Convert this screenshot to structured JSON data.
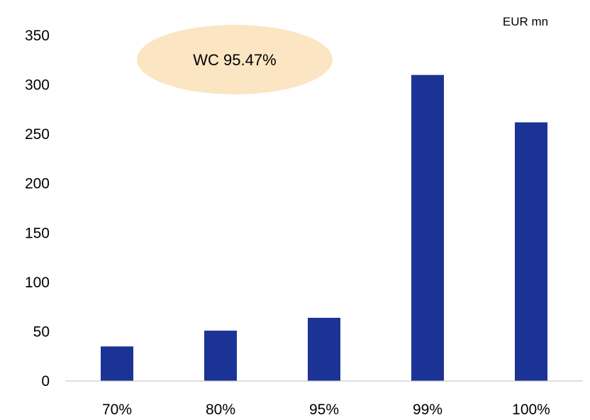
{
  "chart_data": {
    "type": "bar",
    "categories": [
      "70%",
      "80%",
      "95%",
      "99%",
      "100%"
    ],
    "values": [
      35,
      51,
      64,
      310,
      262
    ],
    "title": "",
    "xlabel": "",
    "ylabel": "",
    "unit_label": "EUR mn",
    "ylim": [
      0,
      350
    ],
    "yticks": [
      0,
      50,
      100,
      150,
      200,
      250,
      300,
      350
    ],
    "grid": false,
    "legend": "none",
    "annotation": {
      "text": "WC 95.47%",
      "shape": "ellipse"
    },
    "colors": {
      "bar": "#1C3396",
      "annotation_fill": "#FBE5C2",
      "axis": "#BFBFBF",
      "text": "#000000"
    }
  }
}
